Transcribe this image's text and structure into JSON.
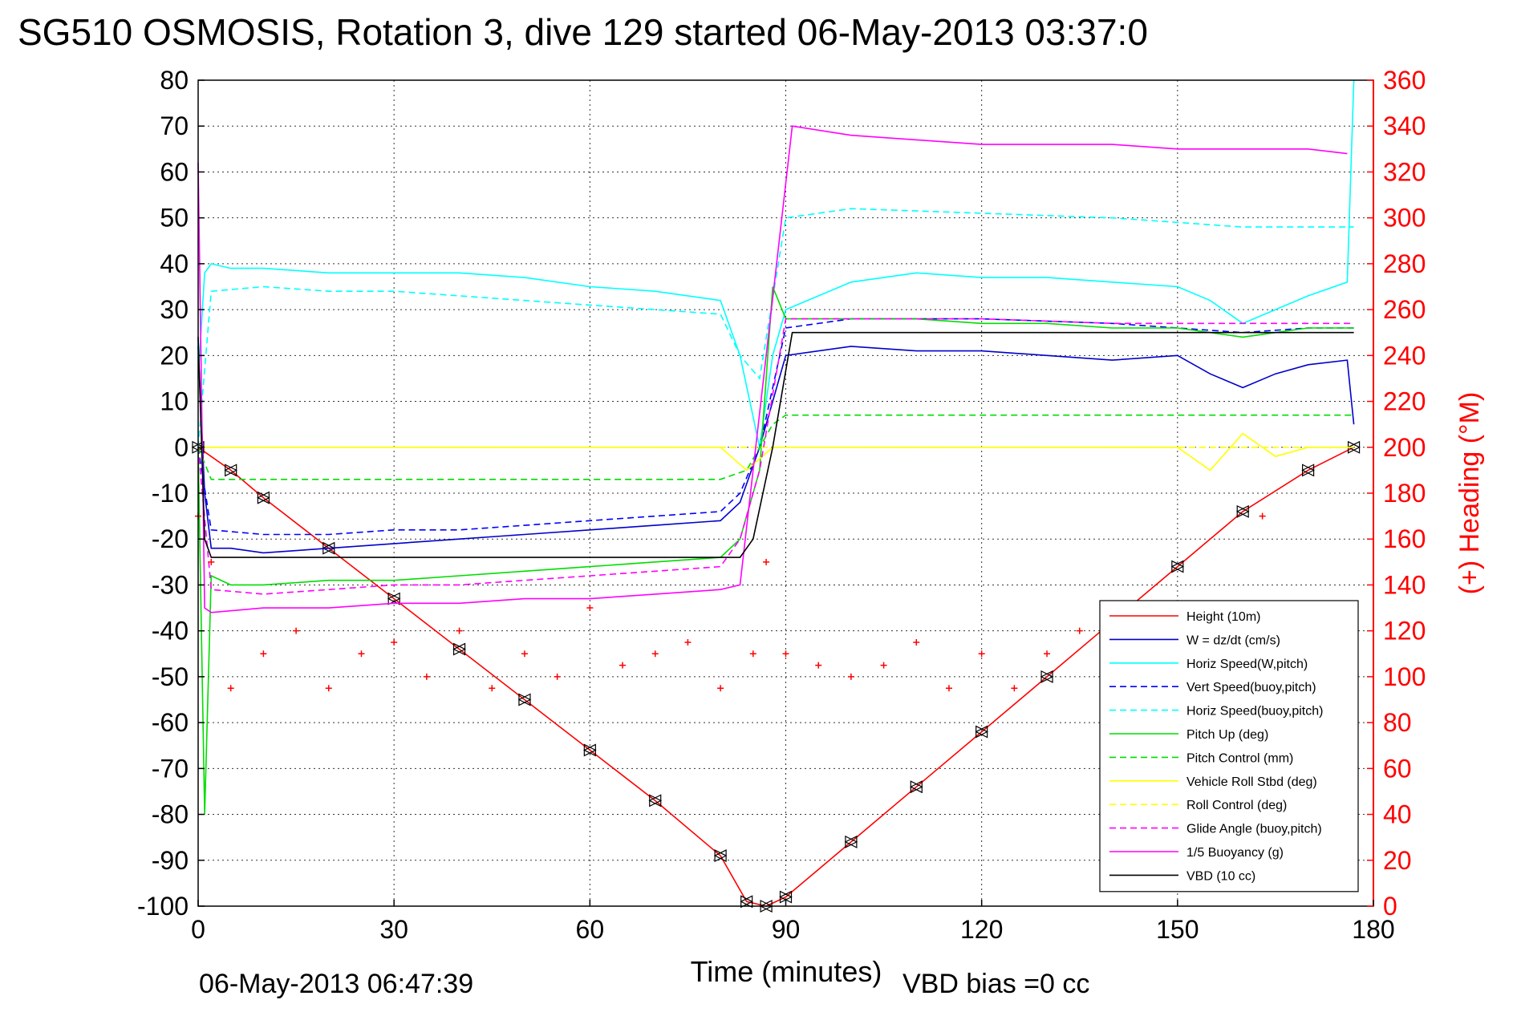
{
  "chart_data": {
    "type": "line",
    "title": "SG510 OSMOSIS, Rotation 3, dive 129 started 06-May-2013 03:37:0",
    "xlabel": "Time (minutes)",
    "ylabel": "",
    "ylabel_right": "(+) Heading (°M)",
    "xlim": [
      0,
      180
    ],
    "ylim": [
      -100,
      80
    ],
    "ylim_right": [
      0,
      360
    ],
    "xticks": [
      "0",
      "30",
      "60",
      "90",
      "120",
      "150",
      "180"
    ],
    "yticks": [
      "80",
      "70",
      "60",
      "50",
      "40",
      "30",
      "20",
      "10",
      "0",
      "-10",
      "-20",
      "-30",
      "-40",
      "-50",
      "-60",
      "-70",
      "-80",
      "-90",
      "-100"
    ],
    "yticks_right": [
      "360",
      "340",
      "320",
      "300",
      "280",
      "260",
      "240",
      "220",
      "200",
      "180",
      "160",
      "140",
      "120",
      "100",
      "80",
      "60",
      "40",
      "20",
      "0"
    ],
    "grid": true,
    "legend_position": "bottom-right",
    "footer_left": "06-May-2013 06:47:39",
    "footer_right": "VBD bias =0 cc",
    "series": [
      {
        "name": "Height (10m)",
        "color": "#ff0000",
        "style": "solid",
        "marker": "triangle",
        "x": [
          0,
          5,
          10,
          20,
          30,
          40,
          50,
          60,
          70,
          80,
          84,
          87,
          90,
          100,
          110,
          120,
          130,
          140,
          150,
          160,
          170,
          177
        ],
        "y": [
          0,
          -5,
          -11,
          -22,
          -33,
          -44,
          -55,
          -66,
          -77,
          -89,
          -99,
          -100,
          -98,
          -86,
          -74,
          -62,
          -50,
          -38,
          -26,
          -14,
          -5,
          0
        ]
      },
      {
        "name": "W = dz/dt (cm/s)",
        "color": "#0000cc",
        "style": "solid",
        "x": [
          0,
          1,
          2,
          5,
          10,
          20,
          30,
          40,
          50,
          60,
          70,
          80,
          83,
          86,
          88,
          90,
          100,
          110,
          120,
          130,
          140,
          150,
          155,
          160,
          165,
          170,
          176,
          177
        ],
        "y": [
          22,
          -10,
          -22,
          -22,
          -23,
          -22,
          -21,
          -20,
          -19,
          -18,
          -17,
          -16,
          -12,
          0,
          10,
          20,
          22,
          21,
          21,
          20,
          19,
          20,
          16,
          13,
          16,
          18,
          19,
          5
        ]
      },
      {
        "name": "Horiz Speed(W,pitch)",
        "color": "#00ffff",
        "style": "solid",
        "x": [
          0,
          1,
          2,
          5,
          10,
          20,
          30,
          40,
          50,
          60,
          70,
          80,
          83,
          86,
          88,
          90,
          100,
          110,
          120,
          130,
          140,
          150,
          155,
          160,
          165,
          170,
          176,
          177
        ],
        "y": [
          15,
          38,
          40,
          39,
          39,
          38,
          38,
          38,
          37,
          35,
          34,
          32,
          20,
          0,
          20,
          30,
          36,
          38,
          37,
          37,
          36,
          35,
          32,
          27,
          30,
          33,
          36,
          80
        ]
      },
      {
        "name": "Vert Speed(buoy,pitch)",
        "color": "#0000ff",
        "style": "dashed",
        "x": [
          0,
          2,
          10,
          20,
          30,
          40,
          50,
          60,
          70,
          80,
          83,
          86,
          90,
          100,
          120,
          140,
          160,
          170,
          177
        ],
        "y": [
          0,
          -18,
          -19,
          -19,
          -18,
          -18,
          -17,
          -16,
          -15,
          -14,
          -10,
          0,
          26,
          28,
          28,
          27,
          25,
          26,
          26
        ]
      },
      {
        "name": "Horiz Speed(buoy,pitch)",
        "color": "#00ffff",
        "style": "dashed",
        "x": [
          0,
          2,
          10,
          20,
          30,
          40,
          50,
          60,
          70,
          80,
          83,
          86,
          90,
          100,
          120,
          140,
          160,
          170,
          177
        ],
        "y": [
          0,
          34,
          35,
          34,
          34,
          33,
          32,
          31,
          30,
          29,
          20,
          15,
          50,
          52,
          51,
          50,
          48,
          48,
          48
        ]
      },
      {
        "name": "Pitch Up (deg)",
        "color": "#00dd00",
        "style": "solid",
        "x": [
          0,
          1,
          2,
          5,
          10,
          20,
          30,
          40,
          50,
          60,
          70,
          80,
          83,
          86,
          88,
          90,
          100,
          110,
          120,
          130,
          140,
          150,
          155,
          160,
          165,
          170,
          177
        ],
        "y": [
          0,
          -80,
          -28,
          -30,
          -30,
          -29,
          -29,
          -28,
          -27,
          -26,
          -25,
          -24,
          -20,
          -5,
          35,
          28,
          28,
          28,
          27,
          27,
          26,
          26,
          25,
          24,
          25,
          26,
          26
        ]
      },
      {
        "name": "Pitch Control (mm)",
        "color": "#00dd00",
        "style": "dashed",
        "x": [
          0,
          2,
          30,
          60,
          80,
          84,
          88,
          90,
          120,
          150,
          177
        ],
        "y": [
          0,
          -7,
          -7,
          -7,
          -7,
          -5,
          5,
          7,
          7,
          7,
          7
        ]
      },
      {
        "name": "Vehicle Roll Stbd (deg)",
        "color": "#ffff00",
        "style": "solid",
        "x": [
          0,
          2,
          10,
          20,
          30,
          40,
          50,
          60,
          70,
          80,
          84,
          88,
          90,
          100,
          120,
          140,
          150,
          155,
          160,
          165,
          170,
          177
        ],
        "y": [
          0,
          0,
          0,
          0,
          0,
          0,
          0,
          0,
          0,
          0,
          -5,
          0,
          0,
          0,
          0,
          0,
          0,
          -5,
          3,
          -2,
          0,
          0
        ]
      },
      {
        "name": "Roll Control (deg)",
        "color": "#ffff00",
        "style": "dashed",
        "x": [
          0,
          2,
          30,
          60,
          80,
          84,
          88,
          90,
          120,
          150,
          177
        ],
        "y": [
          0,
          0,
          0,
          0,
          0,
          0,
          0,
          0,
          0,
          0,
          0
        ]
      },
      {
        "name": "Glide Angle (buoy,pitch)",
        "color": "#ff00ff",
        "style": "dashed",
        "x": [
          0,
          2,
          10,
          20,
          30,
          40,
          50,
          60,
          70,
          80,
          83,
          86,
          90,
          100,
          120,
          140,
          160,
          170,
          177
        ],
        "y": [
          0,
          -31,
          -32,
          -31,
          -30,
          -30,
          -29,
          -28,
          -27,
          -26,
          -20,
          -5,
          28,
          28,
          28,
          27,
          27,
          27,
          27
        ]
      },
      {
        "name": "1/5 Buoyancy (g)",
        "color": "#ff00ff",
        "style": "solid",
        "x": [
          0,
          1,
          2,
          10,
          20,
          30,
          40,
          50,
          60,
          70,
          80,
          83,
          91,
          100,
          110,
          120,
          130,
          140,
          150,
          160,
          170,
          176
        ],
        "y": [
          62,
          -35,
          -36,
          -35,
          -35,
          -34,
          -34,
          -33,
          -33,
          -32,
          -31,
          -30,
          70,
          68,
          67,
          66,
          66,
          66,
          65,
          65,
          65,
          64
        ]
      },
      {
        "name": "VBD (10 cc)",
        "color": "#000000",
        "style": "solid",
        "x": [
          0,
          1,
          2,
          10,
          40,
          60,
          83,
          85,
          88,
          91,
          120,
          150,
          177
        ],
        "y": [
          24,
          -20,
          -24,
          -24,
          -24,
          -24,
          -24,
          -20,
          0,
          25,
          25,
          25,
          25
        ]
      },
      {
        "name": "Heading",
        "color": "#ff0000",
        "style": "marker",
        "marker": "+",
        "axis": "right",
        "x": [
          0,
          2,
          5,
          10,
          15,
          20,
          25,
          30,
          35,
          40,
          45,
          50,
          55,
          60,
          65,
          70,
          75,
          80,
          85,
          87,
          90,
          95,
          100,
          105,
          110,
          115,
          120,
          125,
          130,
          135,
          140,
          145,
          150,
          155,
          160,
          163,
          165,
          170,
          175
        ],
        "y": [
          170,
          150,
          95,
          110,
          120,
          95,
          110,
          115,
          100,
          120,
          95,
          110,
          100,
          130,
          105,
          110,
          115,
          95,
          110,
          150,
          110,
          105,
          100,
          105,
          115,
          95,
          110,
          95,
          110,
          120,
          100,
          110,
          115,
          100,
          110,
          170,
          100,
          110,
          105
        ]
      }
    ]
  }
}
